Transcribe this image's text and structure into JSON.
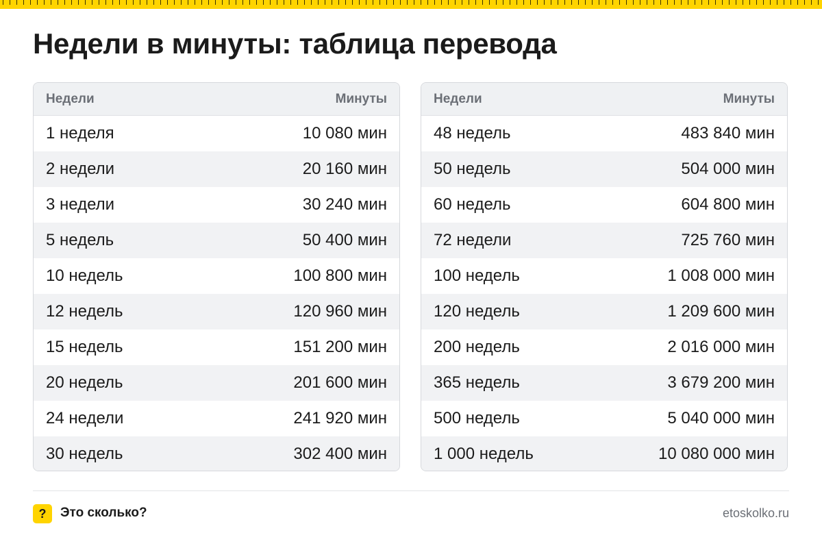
{
  "title": "Недели в минуты: таблица перевода",
  "headers": {
    "weeks": "Недели",
    "minutes": "Минуты"
  },
  "tables": [
    {
      "rows": [
        {
          "weeks": "1 неделя",
          "minutes": "10 080 мин"
        },
        {
          "weeks": "2 недели",
          "minutes": "20 160 мин"
        },
        {
          "weeks": "3 недели",
          "minutes": "30 240 мин"
        },
        {
          "weeks": "5 недель",
          "minutes": "50 400 мин"
        },
        {
          "weeks": "10 недель",
          "minutes": "100 800 мин"
        },
        {
          "weeks": "12 недель",
          "minutes": "120 960 мин"
        },
        {
          "weeks": "15 недель",
          "minutes": "151 200 мин"
        },
        {
          "weeks": "20 недель",
          "minutes": "201 600 мин"
        },
        {
          "weeks": "24 недели",
          "minutes": "241 920 мин"
        },
        {
          "weeks": "30 недель",
          "minutes": "302 400 мин"
        }
      ]
    },
    {
      "rows": [
        {
          "weeks": "48 недель",
          "minutes": "483 840 мин"
        },
        {
          "weeks": "50 недель",
          "minutes": "504 000 мин"
        },
        {
          "weeks": "60 недель",
          "minutes": "604 800 мин"
        },
        {
          "weeks": "72 недели",
          "minutes": "725 760 мин"
        },
        {
          "weeks": "100 недель",
          "minutes": "1 008 000 мин"
        },
        {
          "weeks": "120 недель",
          "minutes": "1 209 600 мин"
        },
        {
          "weeks": "200 недель",
          "minutes": "2 016 000 мин"
        },
        {
          "weeks": "365 недель",
          "minutes": "3 679 200 мин"
        },
        {
          "weeks": "500 недель",
          "minutes": "5 040 000 мин"
        },
        {
          "weeks": "1 000 недель",
          "minutes": "10 080 000 мин"
        }
      ]
    }
  ],
  "footer": {
    "badge": "?",
    "brand": "Это сколько?",
    "site": "etoskolko.ru"
  },
  "colors": {
    "accent": "#ffd400",
    "header_bg": "#eff1f3",
    "stripe_bg": "#f1f2f4",
    "border": "#d6d8dc"
  }
}
